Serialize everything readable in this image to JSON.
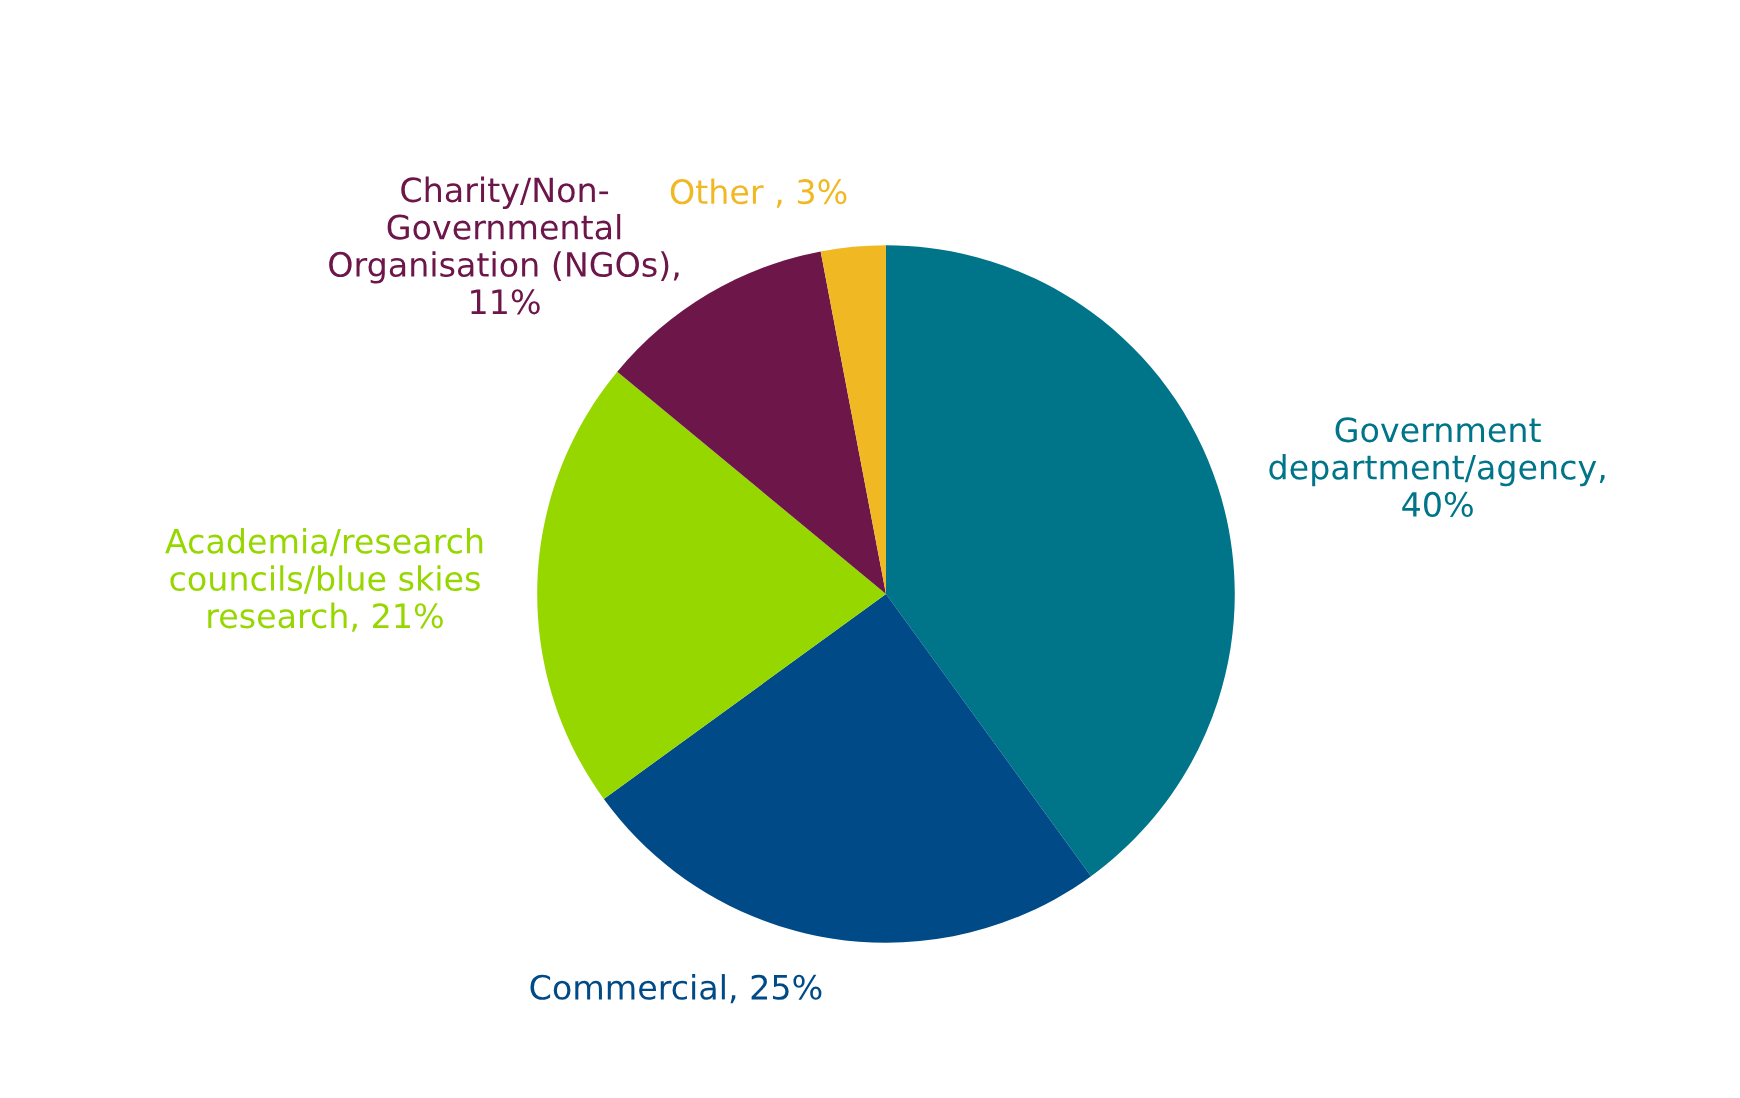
{
  "chart_data": {
    "type": "pie",
    "categories": [
      "Government\ndepartment/agency,\n40%",
      "Commercial, 25%",
      "Academia/research\ncouncils/blue skies\nresearch, 21%",
      "Charity/Non-\nGovernmental\nOrganisation (NGOs),\n11%",
      "Other , 3%"
    ],
    "values": [
      40,
      25,
      21,
      11,
      3
    ],
    "colors": [
      "#00758a",
      "#004b87",
      "#97d700",
      "#6d164a",
      "#f0b823"
    ],
    "legend": false
  }
}
